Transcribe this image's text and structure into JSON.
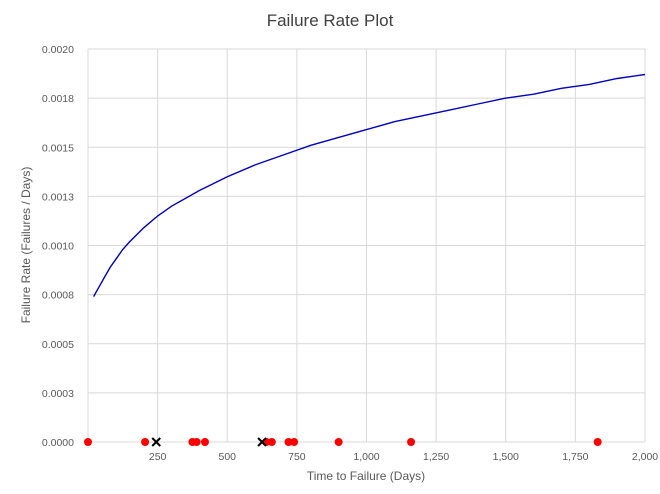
{
  "chart_data": {
    "type": "line",
    "title": "Failure Rate Plot",
    "xlabel": "Time to Failure (Days)",
    "ylabel": "Failure Rate (Failures / Days)",
    "xlim": [
      0,
      2000
    ],
    "ylim": [
      0,
      0.002
    ],
    "grid": true,
    "x_ticks": [
      {
        "value": 250,
        "label": "250"
      },
      {
        "value": 500,
        "label": "500"
      },
      {
        "value": 750,
        "label": "750"
      },
      {
        "value": 1000,
        "label": "1,000"
      },
      {
        "value": 1250,
        "label": "1,250"
      },
      {
        "value": 1500,
        "label": "1,500"
      },
      {
        "value": 1750,
        "label": "1,750"
      },
      {
        "value": 2000,
        "label": "2,000"
      }
    ],
    "y_ticks": [
      {
        "value": 0.0,
        "label": "0.0000"
      },
      {
        "value": 0.00025,
        "label": "0.0003"
      },
      {
        "value": 0.0005,
        "label": "0.0005"
      },
      {
        "value": 0.00075,
        "label": "0.0008"
      },
      {
        "value": 0.001,
        "label": "0.0010"
      },
      {
        "value": 0.00125,
        "label": "0.0013"
      },
      {
        "value": 0.0015,
        "label": "0.0015"
      },
      {
        "value": 0.00175,
        "label": "0.0018"
      },
      {
        "value": 0.002,
        "label": "0.0020"
      }
    ],
    "series": [
      {
        "kind": "line",
        "color": "#0000c0",
        "x": [
          20,
          40,
          60,
          80,
          100,
          125,
          150,
          200,
          250,
          300,
          400,
          500,
          600,
          700,
          800,
          900,
          1000,
          1100,
          1200,
          1300,
          1400,
          1500,
          1600,
          1700,
          1800,
          1900,
          2000
        ],
        "y": [
          0.00074,
          0.00079,
          0.00084,
          0.00089,
          0.00093,
          0.00098,
          0.00102,
          0.00109,
          0.00115,
          0.0012,
          0.00128,
          0.00135,
          0.00141,
          0.00146,
          0.00151,
          0.00155,
          0.00159,
          0.00163,
          0.00166,
          0.00169,
          0.00172,
          0.00175,
          0.00177,
          0.0018,
          0.00182,
          0.00185,
          0.00187
        ]
      },
      {
        "kind": "points",
        "marker": "circle",
        "color": "#ff0000",
        "x": [
          0,
          205,
          375,
          390,
          420,
          640,
          660,
          720,
          740,
          900,
          1160,
          1830
        ],
        "y": [
          0,
          0,
          0,
          0,
          0,
          0,
          0,
          0,
          0,
          0,
          0,
          0
        ]
      },
      {
        "kind": "points",
        "marker": "x",
        "color": "#000000",
        "x": [
          245,
          625
        ],
        "y": [
          0,
          0
        ]
      }
    ]
  }
}
